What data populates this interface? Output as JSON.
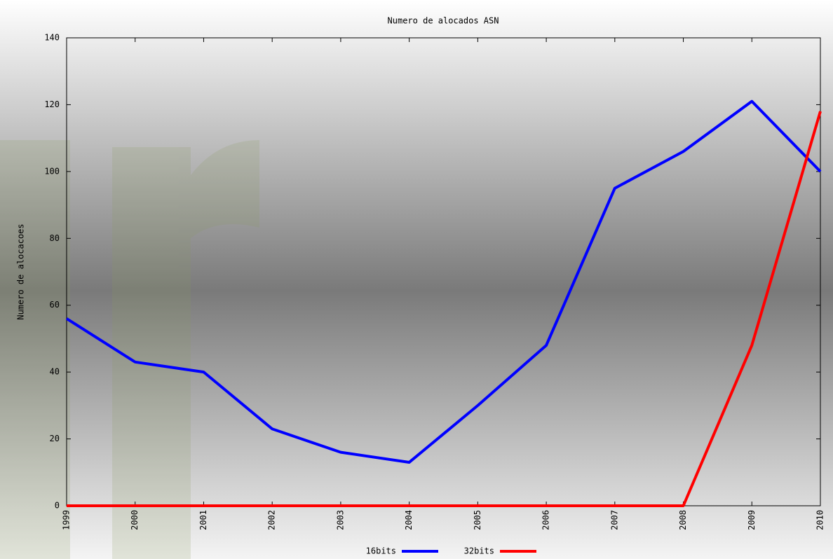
{
  "chart_data": {
    "type": "line",
    "title": "Numero de alocados ASN",
    "y_label": "Numero de alocacoes",
    "categories": [
      "1999",
      "2000",
      "2001",
      "2002",
      "2003",
      "2004",
      "2005",
      "2006",
      "2007",
      "2008",
      "2009",
      "2010"
    ],
    "series": [
      {
        "name": "16bits",
        "color": "#0000ff",
        "values": [
          56,
          43,
          40,
          23,
          16,
          13,
          30,
          48,
          95,
          106,
          121,
          100
        ]
      },
      {
        "name": "32bits",
        "color": "#ff0000",
        "values": [
          0,
          0,
          0,
          0,
          0,
          0,
          0,
          0,
          0,
          0,
          48,
          118
        ]
      }
    ],
    "ylim": [
      0,
      140
    ],
    "yticks": [
      0,
      20,
      40,
      60,
      80,
      100,
      120,
      140
    ],
    "grid": false
  }
}
